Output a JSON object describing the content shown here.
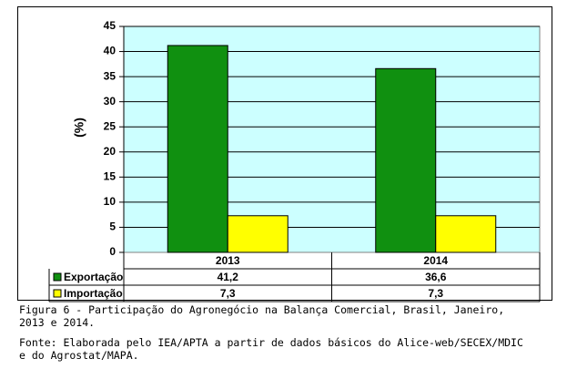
{
  "chart_data": {
    "type": "bar",
    "categories": [
      "2013",
      "2014"
    ],
    "series": [
      {
        "name": "Exportação",
        "values": [
          41.2,
          36.6
        ],
        "color": "#109010"
      },
      {
        "name": "Importação",
        "values": [
          7.3,
          7.3
        ],
        "color": "#ffff00"
      }
    ],
    "table_values": [
      [
        "41,2",
        "36,6"
      ],
      [
        "7,3",
        "7,3"
      ]
    ],
    "ylabel": "(%)",
    "ylim": [
      0,
      45
    ],
    "yticks": [
      0,
      5,
      10,
      15,
      20,
      25,
      30,
      35,
      40,
      45
    ],
    "grid": true,
    "plot_background": "#ccffff",
    "legend": "data-table"
  },
  "caption": {
    "figure_lines": [
      "Figura 6 - Participação do Agronegócio na Balança Comercial, Brasil, Janeiro,",
      "2013 e 2014."
    ],
    "source_lines": [
      "Fonte: Elaborada pelo IEA/APTA a partir de dados básicos do Alice-web/SECEX/MDIC",
      "e do Agrostat/MAPA."
    ]
  }
}
